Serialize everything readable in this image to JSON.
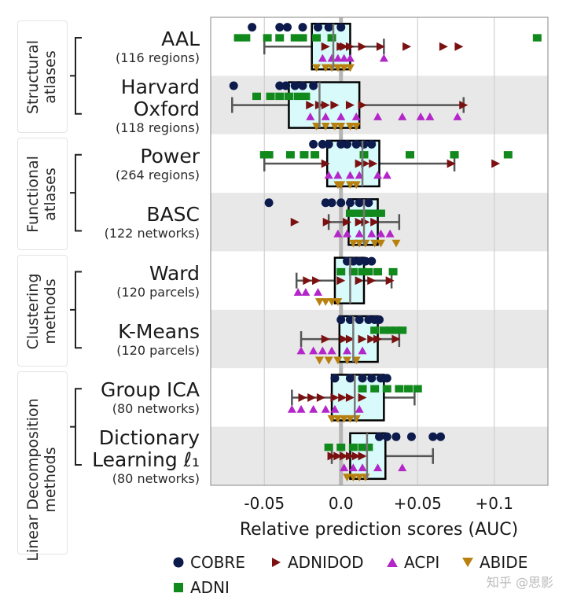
{
  "chart_data": {
    "type": "scatter",
    "xlabel": "Relative prediction scores (AUC)",
    "xlim": [
      -0.085,
      0.135
    ],
    "x_ticks": [
      {
        "value": -0.05,
        "label": "-0.05"
      },
      {
        "value": 0.0,
        "label": "0.0"
      },
      {
        "value": 0.05,
        "label": "+0.05"
      },
      {
        "value": 0.1,
        "label": "+0.1"
      }
    ],
    "groups": [
      {
        "label_lines": [
          "Structural",
          "atlases"
        ],
        "rows": [
          0,
          1
        ]
      },
      {
        "label_lines": [
          "Functional",
          "atlases"
        ],
        "rows": [
          2,
          3
        ]
      },
      {
        "label_lines": [
          "Clustering",
          "methods"
        ],
        "rows": [
          4,
          5
        ]
      },
      {
        "label_lines": [
          "Linear Decomposition",
          "methods"
        ],
        "rows": [
          6,
          7
        ]
      }
    ],
    "rows": [
      {
        "name_lines": [
          "AAL"
        ],
        "sub": "(116 regions)",
        "box": {
          "q1": -0.019,
          "median": -0.005,
          "q3": 0.006,
          "whisker_low": -0.05,
          "whisker_high": 0.028
        }
      },
      {
        "name_lines": [
          "Harvard",
          "Oxford"
        ],
        "sub": "(118 regions)",
        "box": {
          "q1": -0.034,
          "median": -0.014,
          "q3": 0.012,
          "whisker_low": -0.071,
          "whisker_high": 0.08
        }
      },
      {
        "name_lines": [
          "Power"
        ],
        "sub": "(264 regions)",
        "box": {
          "q1": -0.009,
          "median": 0.014,
          "q3": 0.025,
          "whisker_low": -0.05,
          "whisker_high": 0.074
        }
      },
      {
        "name_lines": [
          "BASC"
        ],
        "sub": "(122 networks)",
        "box": {
          "q1": 0.005,
          "median": 0.015,
          "q3": 0.024,
          "whisker_low": -0.008,
          "whisker_high": 0.038
        }
      },
      {
        "name_lines": [
          "Ward"
        ],
        "sub": "(120 parcels)",
        "box": {
          "q1": -0.004,
          "median": 0.006,
          "q3": 0.015,
          "whisker_low": -0.029,
          "whisker_high": 0.033
        }
      },
      {
        "name_lines": [
          "K-Means"
        ],
        "sub": "(120 parcels)",
        "box": {
          "q1": -0.001,
          "median": 0.008,
          "q3": 0.024,
          "whisker_low": -0.026,
          "whisker_high": 0.038
        }
      },
      {
        "name_lines": [
          "Group ICA"
        ],
        "sub": "(80 networks)",
        "box": {
          "q1": -0.006,
          "median": 0.009,
          "q3": 0.028,
          "whisker_low": -0.032,
          "whisker_high": 0.048
        }
      },
      {
        "name_lines": [
          "Dictionary",
          "Learning ℓ₁"
        ],
        "sub": "(80 networks)",
        "box": {
          "q1": 0.006,
          "median": 0.017,
          "q3": 0.029,
          "whisker_low": -0.006,
          "whisker_high": 0.06
        }
      }
    ],
    "series": [
      {
        "name": "COBRE",
        "marker": "circle",
        "color": "#0d1b4c",
        "offset": -0.33,
        "values": [
          [
            -0.058,
            -0.04,
            -0.035,
            -0.025,
            -0.015,
            -0.008,
            0.0
          ],
          [
            -0.07,
            -0.04,
            -0.036,
            -0.03,
            -0.025,
            -0.018
          ],
          [
            -0.018,
            -0.012,
            -0.008,
            0.0,
            0.004,
            0.01,
            0.015,
            0.02
          ],
          [
            -0.047,
            -0.01,
            -0.006,
            0.0,
            0.006,
            0.012,
            0.018
          ],
          [
            0.004,
            0.008,
            0.012,
            0.016,
            0.02
          ],
          [
            0.0,
            0.006,
            0.012,
            0.018,
            0.022,
            0.025
          ],
          [
            -0.004,
            0.006,
            0.014,
            0.02,
            0.026,
            0.03
          ],
          [
            0.025,
            0.03,
            0.036,
            0.046,
            0.06,
            0.065
          ]
        ]
      },
      {
        "name": "ADNIDOD",
        "marker": "triangle-right",
        "color": "#7a1010",
        "offset": 0.0,
        "values": [
          [
            -0.01,
            0.0,
            0.002,
            0.006,
            0.014,
            0.026,
            0.043,
            0.067,
            0.077
          ],
          [
            -0.02,
            -0.014,
            -0.01,
            -0.004,
            0.006,
            0.014,
            0.08
          ],
          [
            -0.01,
            0.012,
            0.016,
            0.021,
            0.072,
            0.101
          ],
          [
            -0.03,
            -0.009,
            0.004,
            0.012,
            0.016,
            0.022
          ],
          [
            -0.022,
            -0.016,
            0.0,
            0.012,
            0.02,
            0.032
          ],
          [
            -0.01,
            0.002,
            0.006,
            0.014,
            0.02,
            0.024,
            0.036
          ],
          [
            -0.025,
            -0.019,
            -0.013,
            -0.004,
            0.001,
            0.006,
            0.014
          ],
          [
            -0.006,
            -0.002,
            0.002,
            0.006,
            0.01,
            0.014
          ]
        ]
      },
      {
        "name": "ACPI",
        "marker": "triangle-up",
        "color": "#b326c8",
        "offset": 0.2,
        "values": [
          [
            -0.012,
            -0.006,
            -0.002,
            0.002,
            0.006,
            0.028
          ],
          [
            -0.02,
            -0.01,
            0.0,
            0.01,
            0.024,
            0.04,
            0.052,
            0.058,
            0.076
          ],
          [
            -0.008,
            -0.002,
            0.006,
            0.012,
            0.024,
            0.03
          ],
          [
            -0.002,
            0.004,
            0.012,
            0.02,
            0.026,
            0.032
          ],
          [
            -0.028,
            -0.023,
            -0.015
          ],
          [
            -0.026,
            -0.018,
            -0.012,
            -0.006,
            0.004,
            0.014
          ],
          [
            -0.032,
            -0.026,
            -0.018,
            -0.01,
            -0.004,
            0.012
          ],
          [
            0.002,
            0.008,
            0.014,
            0.024,
            0.04
          ]
        ]
      },
      {
        "name": "ABIDE",
        "marker": "triangle-down",
        "color": "#b8810f",
        "offset": 0.36,
        "values": [
          [
            -0.016,
            -0.01,
            -0.006,
            -0.002,
            0.002,
            0.006
          ],
          [
            -0.016,
            -0.01,
            -0.004,
            0.0,
            0.006,
            0.01
          ],
          [
            -0.002,
            0.0,
            0.006,
            0.01
          ],
          [
            0.008,
            0.012,
            0.016,
            0.022,
            0.026,
            0.036
          ],
          [
            -0.014,
            -0.01,
            -0.006,
            -0.002
          ],
          [
            -0.014,
            -0.008,
            -0.002,
            0.004,
            0.01
          ],
          [
            -0.006,
            -0.002,
            0.002,
            0.006,
            0.01
          ],
          [
            0.004,
            0.008,
            0.012,
            0.016
          ]
        ]
      },
      {
        "name": "ADNI",
        "marker": "square",
        "color": "#12891c",
        "offset": -0.15,
        "values": [
          [
            -0.067,
            -0.062,
            -0.048,
            -0.04,
            -0.03,
            -0.025,
            -0.016,
            -0.006,
            0.128
          ],
          [
            -0.055,
            -0.046,
            -0.04,
            -0.034,
            -0.028,
            -0.023
          ],
          [
            -0.05,
            -0.047,
            -0.033,
            -0.024,
            -0.017,
            0.015,
            0.045,
            0.074,
            0.109
          ],
          [
            0.006,
            0.01,
            0.014,
            0.018,
            0.022,
            0.026
          ],
          [
            0.0,
            0.008,
            0.014,
            0.018,
            0.024,
            0.034
          ],
          [
            0.022,
            0.028,
            0.032,
            0.036,
            0.04
          ],
          [
            0.014,
            0.022,
            0.03,
            0.038,
            0.044,
            0.05
          ],
          [
            -0.008,
            0.0,
            0.008,
            0.014,
            0.018
          ]
        ]
      }
    ],
    "legend_position": "bottom"
  },
  "watermark": "知乎 @思影"
}
